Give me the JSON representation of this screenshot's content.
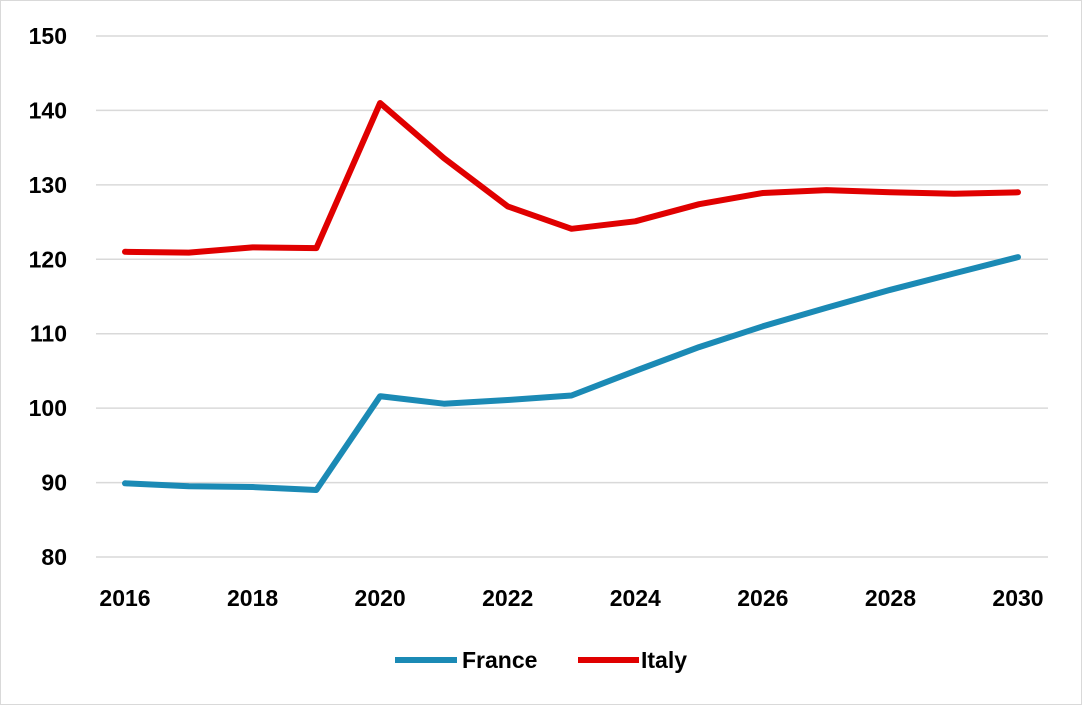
{
  "chart_data": {
    "type": "line",
    "title": "",
    "xlabel": "",
    "ylabel": "",
    "x": [
      2016,
      2017,
      2018,
      2019,
      2020,
      2021,
      2022,
      2023,
      2024,
      2025,
      2026,
      2027,
      2028,
      2029,
      2030
    ],
    "x_tick_labels": [
      "2016",
      "2018",
      "2020",
      "2022",
      "2024",
      "2026",
      "2028",
      "2030"
    ],
    "y_tick_labels": [
      "80",
      "90",
      "100",
      "110",
      "120",
      "130",
      "140",
      "150"
    ],
    "ylim": [
      80,
      150
    ],
    "xlim": [
      2016,
      2030
    ],
    "grid": "horizontal",
    "legend_position": "bottom",
    "series": [
      {
        "name": "France",
        "color": "#1b8ab5",
        "values": [
          89.9,
          89.5,
          89.4,
          89.0,
          101.6,
          100.6,
          101.1,
          101.7,
          105.0,
          108.2,
          111.0,
          113.5,
          115.9,
          118.1,
          120.3
        ]
      },
      {
        "name": "Italy",
        "color": "#e00000",
        "values": [
          121.0,
          120.9,
          121.6,
          121.5,
          141.0,
          133.6,
          127.1,
          124.1,
          125.1,
          127.4,
          128.9,
          129.3,
          129.0,
          128.8,
          129.0
        ]
      }
    ]
  }
}
